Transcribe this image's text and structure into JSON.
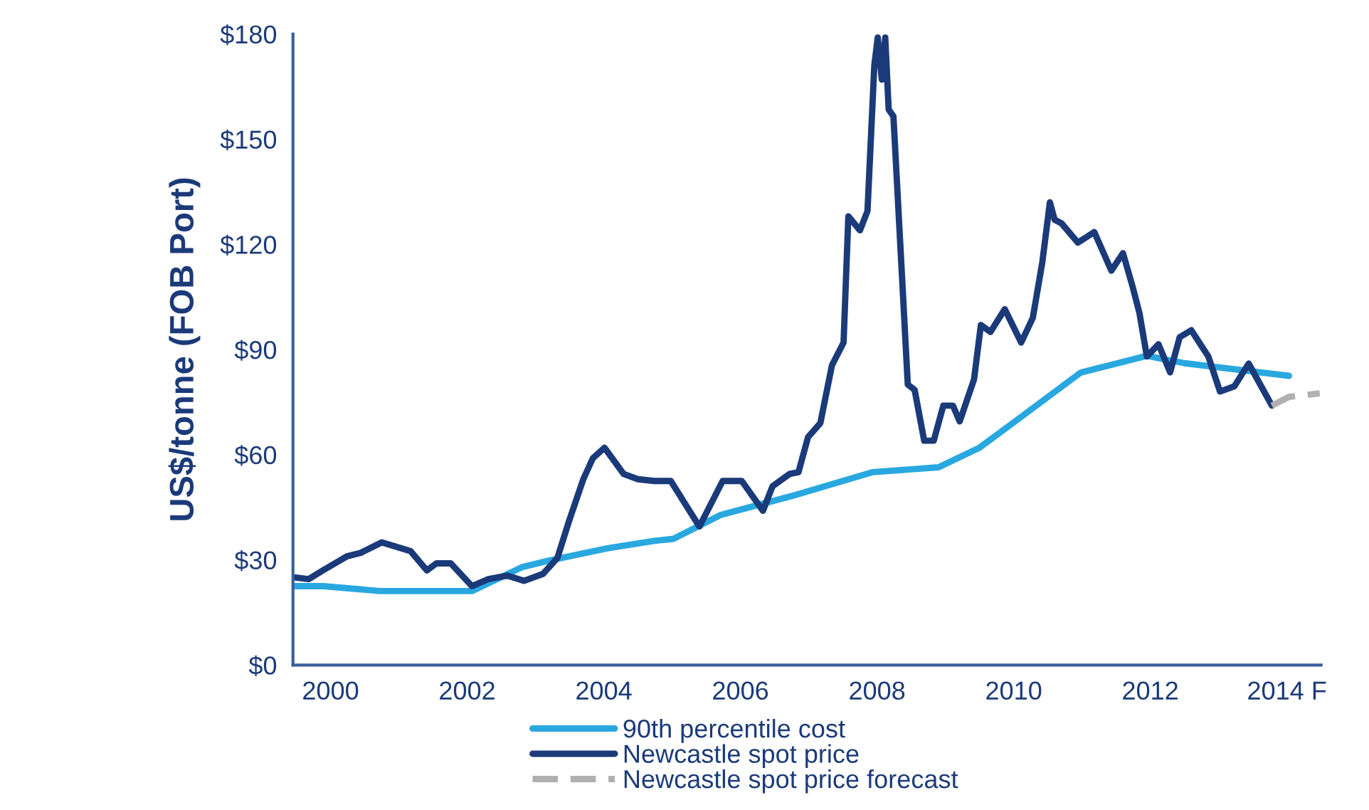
{
  "chart_data": {
    "type": "line",
    "ylabel": "US$/tonne (FOB Port)",
    "xlim": [
      1999.45,
      2014.5
    ],
    "xticks": [
      2000,
      2002,
      2004,
      2006,
      2008,
      2010,
      2012,
      {
        "value": 2014,
        "label": "2014 F"
      }
    ],
    "ylim": [
      0,
      180
    ],
    "yticks": [
      {
        "value": 0,
        "label": "$0"
      },
      {
        "value": 30,
        "label": "$30"
      },
      {
        "value": 60,
        "label": "$60"
      },
      {
        "value": 90,
        "label": "$90"
      },
      {
        "value": 120,
        "label": "$120"
      },
      {
        "value": 150,
        "label": "$150"
      },
      {
        "value": 180,
        "label": "$180"
      }
    ],
    "grid": false,
    "legend": "bottom",
    "series": [
      {
        "name": "90th percentile cost",
        "color": "#29a8e0",
        "line_style": "solid",
        "x": [
          1999.47,
          1999.89,
          2000.72,
          2002.07,
          2002.8,
          2003.22,
          2004.05,
          2004.74,
          2005.02,
          2005.71,
          2006.75,
          2007.93,
          2008.9,
          2009.5,
          2010.0,
          2010.98,
          2011.95,
          2012.5,
          2014.03
        ],
        "values": [
          22.5,
          22.5,
          21.1,
          21.1,
          27.9,
          29.9,
          33.3,
          35.4,
          36,
          42.8,
          48.2,
          55,
          56.4,
          62,
          69.2,
          83.4,
          88.2,
          86.1,
          82.5
        ]
      },
      {
        "name": "Newcastle spot price",
        "color": "#1b3a7a",
        "line_style": "solid",
        "x": [
          1999.47,
          1999.68,
          1999.89,
          2000.24,
          2000.44,
          2000.75,
          2001.17,
          2001.41,
          2001.55,
          2001.76,
          2002.07,
          2002.31,
          2002.59,
          2002.83,
          2003.11,
          2003.32,
          2003.49,
          2003.7,
          2003.84,
          2004.01,
          2004.29,
          2004.5,
          2004.74,
          2004.98,
          2005.4,
          2005.74,
          2006.02,
          2006.33,
          2006.47,
          2006.72,
          2006.85,
          2006.99,
          2007.17,
          2007.34,
          2007.51,
          2007.58,
          2007.75,
          2007.86,
          2007.96,
          2008.01,
          2008.07,
          2008.12,
          2008.17,
          2008.24,
          2008.45,
          2008.55,
          2008.69,
          2008.83,
          2008.97,
          2009.11,
          2009.21,
          2009.42,
          2009.52,
          2009.66,
          2009.87,
          2010.11,
          2010.28,
          2010.42,
          2010.53,
          2010.6,
          2010.7,
          2010.94,
          2011.18,
          2011.43,
          2011.6,
          2011.74,
          2011.84,
          2011.95,
          2012.12,
          2012.29,
          2012.43,
          2012.6,
          2012.85,
          2013.02,
          2013.23,
          2013.44,
          2013.78
        ],
        "values": [
          25,
          24.5,
          27,
          31,
          32,
          35,
          32.5,
          27,
          29,
          29,
          22.5,
          24.5,
          25.5,
          24,
          26,
          30.5,
          41,
          53,
          59,
          62,
          54.5,
          53,
          52.5,
          52.5,
          39.5,
          52.5,
          52.5,
          44,
          51,
          54.5,
          55,
          65,
          69,
          85.5,
          92,
          128,
          124,
          129.5,
          171,
          179,
          167,
          179,
          158.5,
          156.5,
          80,
          78.5,
          64,
          64,
          74,
          74,
          69.5,
          81.5,
          97,
          95,
          101.5,
          92,
          99,
          115,
          132,
          127,
          126,
          120.5,
          123.5,
          112.5,
          117.5,
          108,
          100.5,
          88,
          91.5,
          83.5,
          93.5,
          95.5,
          88,
          78,
          79.5,
          86,
          74
        ]
      },
      {
        "name": "Newcastle spot price forecast",
        "color": "#b0b0b0",
        "line_style": "dashed",
        "x": [
          2013.78,
          2014.03,
          2014.48
        ],
        "values": [
          74,
          76.5,
          77.5
        ]
      }
    ]
  }
}
